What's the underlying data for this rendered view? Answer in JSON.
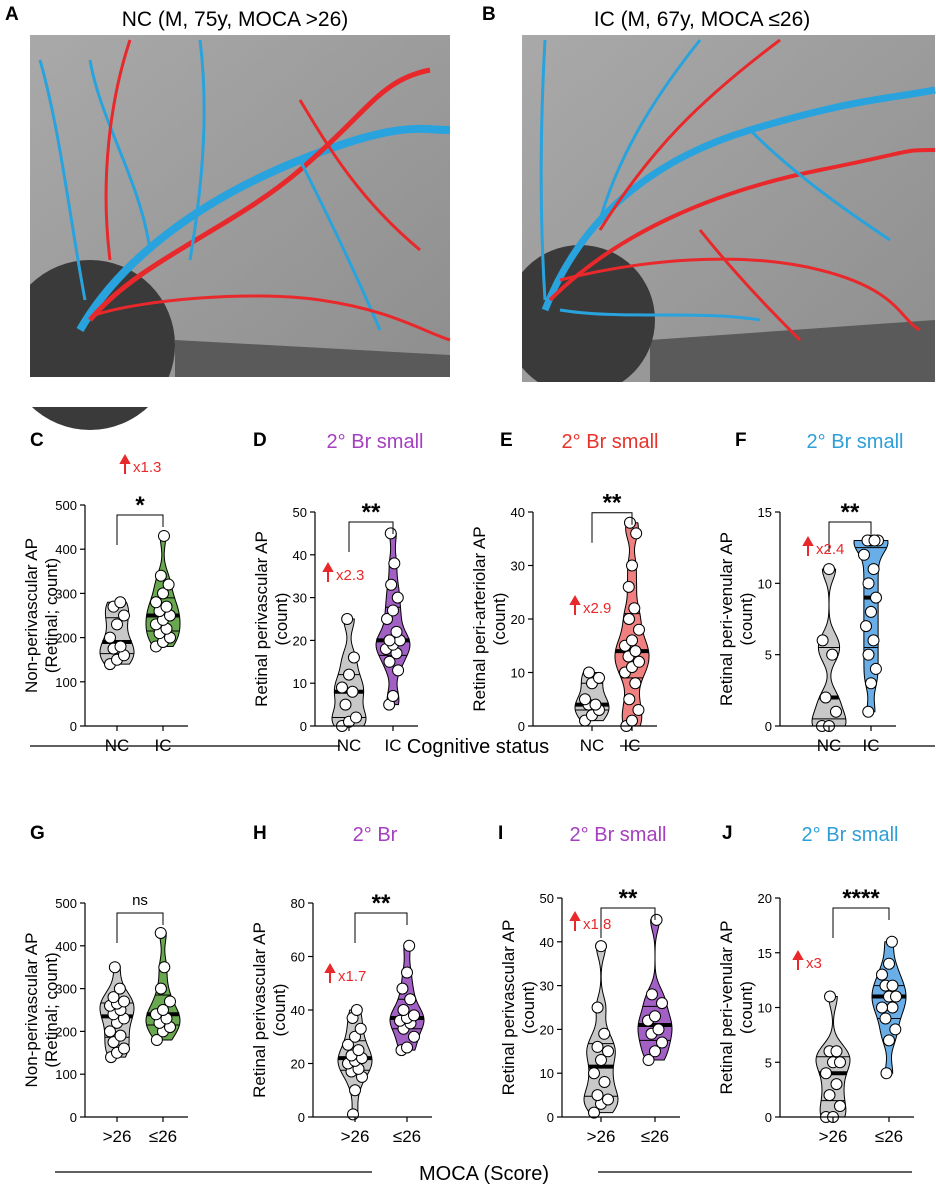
{
  "images": [
    {
      "panel": "A",
      "title": "NC (M, 75y, MOCA >26)"
    },
    {
      "panel": "B",
      "title": "IC (M, 67y, MOCA ≤26)"
    }
  ],
  "group_labels": [
    "Cognitive status",
    "MOCA (Score)"
  ],
  "chart_data": [
    {
      "type": "violin",
      "panel": "C",
      "ylabel": [
        "Non-perivascular AP",
        "(Retinal; count)"
      ],
      "categories": [
        "NC",
        "IC"
      ],
      "colors": [
        "#c8c8c8",
        "#6aa84f"
      ],
      "values": [
        [
          140,
          150,
          160,
          175,
          180,
          200,
          230,
          250,
          270,
          280
        ],
        [
          180,
          190,
          200,
          210,
          220,
          230,
          240,
          250,
          260,
          270,
          280,
          300,
          320,
          340,
          430
        ]
      ],
      "ylim": [
        0,
        500
      ],
      "yticks": [
        0,
        100,
        200,
        300,
        400,
        500
      ],
      "significance": "*",
      "fold": "x1.3"
    },
    {
      "type": "violin",
      "panel": "D",
      "title": "2° Br small",
      "title_color": "#a53fc0",
      "ylabel": [
        "Retinal perivascular AP",
        "(count)"
      ],
      "categories": [
        "NC",
        "IC"
      ],
      "colors": [
        "#c8c8c8",
        "#a25fc4"
      ],
      "values": [
        [
          0,
          1,
          2,
          5,
          8,
          9,
          12,
          16,
          25
        ],
        [
          5,
          7,
          13,
          15,
          17,
          18,
          19,
          20,
          20,
          22,
          25,
          27,
          30,
          33,
          38,
          45
        ]
      ],
      "ylim": [
        0,
        50
      ],
      "yticks": [
        0,
        10,
        20,
        30,
        40,
        50
      ],
      "significance": "**",
      "fold": "x2.3"
    },
    {
      "type": "violin",
      "panel": "E",
      "title": "2° Br small",
      "title_color": "#e8332b",
      "ylabel": [
        "Retinal peri-arteriolar AP",
        "(count)"
      ],
      "categories": [
        "NC",
        "IC"
      ],
      "colors": [
        "#c8c8c8",
        "#f08080"
      ],
      "values": [
        [
          1,
          2,
          3,
          4,
          4,
          5,
          8,
          9,
          10
        ],
        [
          0,
          1,
          3,
          5,
          8,
          10,
          11,
          12,
          13,
          14,
          15,
          16,
          18,
          20,
          22,
          26,
          30,
          36,
          38
        ]
      ],
      "ylim": [
        0,
        40
      ],
      "yticks": [
        0,
        10,
        20,
        30,
        40
      ],
      "significance": "**",
      "fold": "x2.9"
    },
    {
      "type": "violin",
      "panel": "F",
      "title": "2° Br small",
      "title_color": "#2e9fd8",
      "ylabel": [
        "Retinal peri-venular AP",
        "(count)"
      ],
      "categories": [
        "NC",
        "IC"
      ],
      "colors": [
        "#c8c8c8",
        "#6aaee8"
      ],
      "values": [
        [
          0,
          0,
          1,
          2,
          5,
          6,
          11
        ],
        [
          1,
          3,
          4,
          5,
          6,
          7,
          8,
          9,
          10,
          11,
          12,
          13,
          13,
          13,
          13
        ]
      ],
      "ylim": [
        0,
        15
      ],
      "yticks": [
        0,
        5,
        10,
        15
      ],
      "significance": "**",
      "fold": "x2.4"
    },
    {
      "type": "violin",
      "panel": "G",
      "ylabel": [
        "Non-perivascular AP",
        "(Retinal; count)"
      ],
      "categories": [
        ">26",
        "≤26"
      ],
      "colors": [
        "#c8c8c8",
        "#6aa84f"
      ],
      "values": [
        [
          140,
          150,
          160,
          175,
          190,
          200,
          220,
          230,
          240,
          250,
          260,
          265,
          270,
          280,
          300,
          350
        ],
        [
          180,
          200,
          210,
          220,
          230,
          240,
          250,
          270,
          300,
          350,
          430
        ]
      ],
      "ylim": [
        0,
        500
      ],
      "yticks": [
        0,
        100,
        200,
        300,
        400,
        500
      ],
      "significance": "ns"
    },
    {
      "type": "violin",
      "panel": "H",
      "title": "2° Br",
      "title_color": "#a53fc0",
      "ylabel": [
        "Retinal perivascular AP",
        "(count)"
      ],
      "categories": [
        ">26",
        "≤26"
      ],
      "colors": [
        "#c8c8c8",
        "#a25fc4"
      ],
      "values": [
        [
          1,
          10,
          15,
          17,
          18,
          20,
          21,
          22,
          23,
          25,
          27,
          30,
          33,
          37,
          40
        ],
        [
          25,
          26,
          30,
          33,
          35,
          36,
          37,
          38,
          40,
          44,
          48,
          54,
          64
        ]
      ],
      "ylim": [
        0,
        80
      ],
      "yticks": [
        0,
        20,
        40,
        60,
        80
      ],
      "significance": "**",
      "fold": "x1.7"
    },
    {
      "type": "violin",
      "panel": "I",
      "title": "2° Br small",
      "title_color": "#a53fc0",
      "ylabel": [
        "Retinal perivascular AP",
        "(count)"
      ],
      "categories": [
        ">26",
        "≤26"
      ],
      "colors": [
        "#c8c8c8",
        "#a25fc4"
      ],
      "values": [
        [
          1,
          3,
          4,
          5,
          8,
          10,
          13,
          15,
          16,
          19,
          25,
          39
        ],
        [
          13,
          15,
          17,
          19,
          20,
          22,
          23,
          26,
          28,
          45
        ]
      ],
      "ylim": [
        0,
        50
      ],
      "yticks": [
        0,
        10,
        20,
        30,
        40,
        50
      ],
      "significance": "**",
      "fold": "x1.8"
    },
    {
      "type": "violin",
      "panel": "J",
      "title": "2° Br small",
      "title_color": "#2e9fd8",
      "ylabel": [
        "Retinal peri-venular AP",
        "(count)"
      ],
      "categories": [
        ">26",
        "≤26"
      ],
      "colors": [
        "#c8c8c8",
        "#6aaee8"
      ],
      "values": [
        [
          0,
          0,
          1,
          2,
          3,
          4,
          5,
          5,
          6,
          6,
          11
        ],
        [
          4,
          7,
          8,
          9,
          10,
          10,
          11,
          11,
          12,
          12,
          13,
          14,
          16
        ]
      ],
      "ylim": [
        0,
        20
      ],
      "yticks": [
        0,
        5,
        10,
        15,
        20
      ],
      "significance": "****",
      "fold": "x3"
    }
  ]
}
